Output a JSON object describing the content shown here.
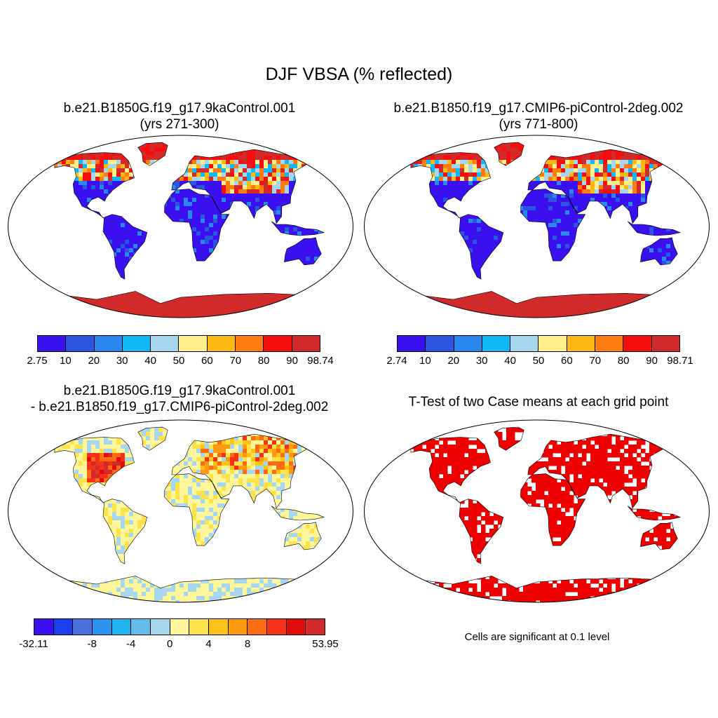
{
  "chart_data": {
    "type": "heatmap",
    "title": "DJF VBSA (% reflected)",
    "panels": [
      {
        "id": "case1",
        "title_line1": "b.e21.B1850G.f19_g17.9kaControl.001",
        "title_line2": "(yrs 271-300)",
        "colorbar": {
          "colors": [
            "#3a10f0",
            "#2b54e0",
            "#2b86ee",
            "#12b7f5",
            "#a6d5ee",
            "#fdf08c",
            "#fdb711",
            "#fd7d10",
            "#f60e0e",
            "#d12a2a"
          ],
          "ticks": [
            "2.75",
            "10",
            "20",
            "30",
            "40",
            "50",
            "60",
            "70",
            "80",
            "90",
            "98.74"
          ]
        }
      },
      {
        "id": "case2",
        "title_line1": "b.e21.B1850.f19_g17.CMIP6-piControl-2deg.002",
        "title_line2": "(yrs 771-800)",
        "colorbar": {
          "colors": [
            "#3a10f0",
            "#2b54e0",
            "#2b86ee",
            "#12b7f5",
            "#a6d5ee",
            "#fdf08c",
            "#fdb711",
            "#fd7d10",
            "#f60e0e",
            "#d12a2a"
          ],
          "ticks": [
            "2.74",
            "10",
            "20",
            "30",
            "40",
            "50",
            "60",
            "70",
            "80",
            "90",
            "98.71"
          ]
        }
      },
      {
        "id": "diff",
        "title_line1": "b.e21.B1850G.f19_g17.9kaControl.001",
        "title_line2": "- b.e21.B1850.f19_g17.CMIP6-piControl-2deg.002",
        "colorbar": {
          "colors": [
            "#3a10f0",
            "#1b3ef0",
            "#4a70de",
            "#2b92ee",
            "#20b3ee",
            "#65bdec",
            "#a7d7ef",
            "#fdf69a",
            "#fde34a",
            "#fdc21a",
            "#fd9a10",
            "#fd6b12",
            "#f53218",
            "#e30a0a",
            "#d12a2a"
          ],
          "ticks": [
            "-32.11",
            "-8",
            "-4",
            "0",
            "4",
            "8",
            "53.95"
          ]
        }
      },
      {
        "id": "ttest",
        "title_line1": "T-Test of two Case means at each grid point",
        "note": "Cells are significant at 0.1 level",
        "colors": [
          "#ee0000"
        ]
      }
    ]
  }
}
